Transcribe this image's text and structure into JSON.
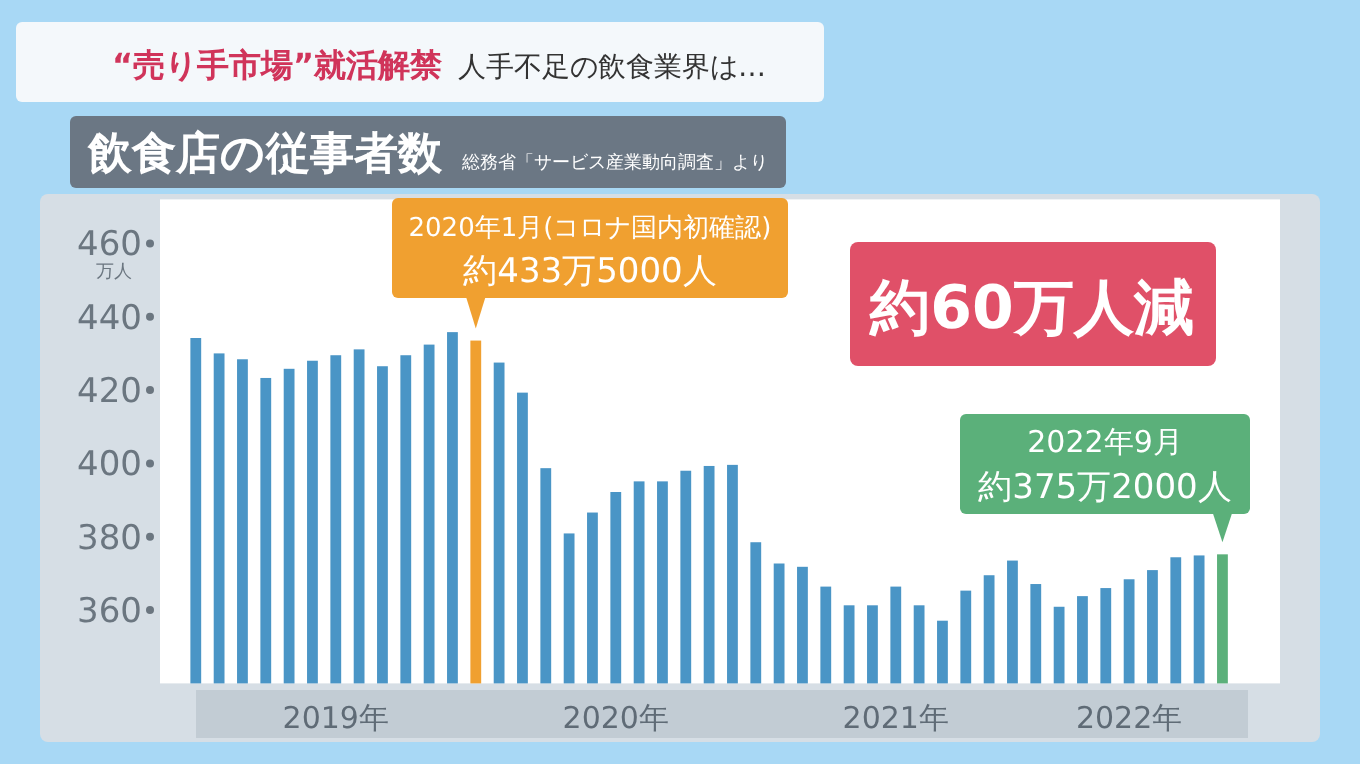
{
  "chart_data": {
    "type": "bar",
    "title": "飲食店の従事者数",
    "ylabel": "万人",
    "x": [
      "2019-01",
      "2019-02",
      "2019-03",
      "2019-04",
      "2019-05",
      "2019-06",
      "2019-07",
      "2019-08",
      "2019-09",
      "2019-10",
      "2019-11",
      "2019-12",
      "2020-01",
      "2020-02",
      "2020-03",
      "2020-04",
      "2020-05",
      "2020-06",
      "2020-07",
      "2020-08",
      "2020-09",
      "2020-10",
      "2020-11",
      "2020-12",
      "2021-01",
      "2021-02",
      "2021-03",
      "2021-04",
      "2021-05",
      "2021-06",
      "2021-07",
      "2021-08",
      "2021-09",
      "2021-10",
      "2021-11",
      "2021-12",
      "2022-01",
      "2022-02",
      "2022-03",
      "2022-04",
      "2022-05",
      "2022-06",
      "2022-07",
      "2022-08",
      "2022-09"
    ],
    "values": [
      434.2,
      430.0,
      428.4,
      423.3,
      425.8,
      428.0,
      429.5,
      431.1,
      426.5,
      429.5,
      432.4,
      435.8,
      433.5,
      427.5,
      419.3,
      398.7,
      380.9,
      386.6,
      392.2,
      395.1,
      395.1,
      398.0,
      399.3,
      399.6,
      378.5,
      372.7,
      371.8,
      366.4,
      361.3,
      361.3,
      366.4,
      361.3,
      357.1,
      365.3,
      369.5,
      373.5,
      367.1,
      360.9,
      363.8,
      366.0,
      368.4,
      370.9,
      374.4,
      374.9,
      375.2
    ],
    "colors": [
      "#4a95c6",
      "#4a95c6",
      "#4a95c6",
      "#4a95c6",
      "#4a95c6",
      "#4a95c6",
      "#4a95c6",
      "#4a95c6",
      "#4a95c6",
      "#4a95c6",
      "#4a95c6",
      "#4a95c6",
      "#f0a030",
      "#4a95c6",
      "#4a95c6",
      "#4a95c6",
      "#4a95c6",
      "#4a95c6",
      "#4a95c6",
      "#4a95c6",
      "#4a95c6",
      "#4a95c6",
      "#4a95c6",
      "#4a95c6",
      "#4a95c6",
      "#4a95c6",
      "#4a95c6",
      "#4a95c6",
      "#4a95c6",
      "#4a95c6",
      "#4a95c6",
      "#4a95c6",
      "#4a95c6",
      "#4a95c6",
      "#4a95c6",
      "#4a95c6",
      "#4a95c6",
      "#4a95c6",
      "#4a95c6",
      "#4a95c6",
      "#4a95c6",
      "#4a95c6",
      "#4a95c6",
      "#4a95c6",
      "#5bb07a"
    ],
    "xlim": [
      "2018-11-15",
      "2022-11-15"
    ],
    "xticks": [
      {
        "value": "2019-07",
        "label": "2019年"
      },
      {
        "value": "2020-07",
        "label": "2020年"
      },
      {
        "value": "2021-07",
        "label": "2021年"
      },
      {
        "value": "2022-05",
        "label": "2022年"
      }
    ],
    "ylim": [
      340,
      472
    ],
    "yticks": [
      360,
      380,
      400,
      420,
      440,
      460
    ],
    "grid": false,
    "annotations": [
      "“売り手市場”就活解禁",
      "人手不足の飲食業界は…",
      "総務省「サービス産業動向調査」より",
      "約60万人減",
      "2020年1月(コロナ国内初確認)",
      {
        "text": "約433万5000人",
        "x": "2020-01",
        "y": 433.5
      },
      "2022年9月",
      {
        "text": "約375万2000人",
        "x": "2022-09",
        "y": 375.2
      }
    ]
  }
}
